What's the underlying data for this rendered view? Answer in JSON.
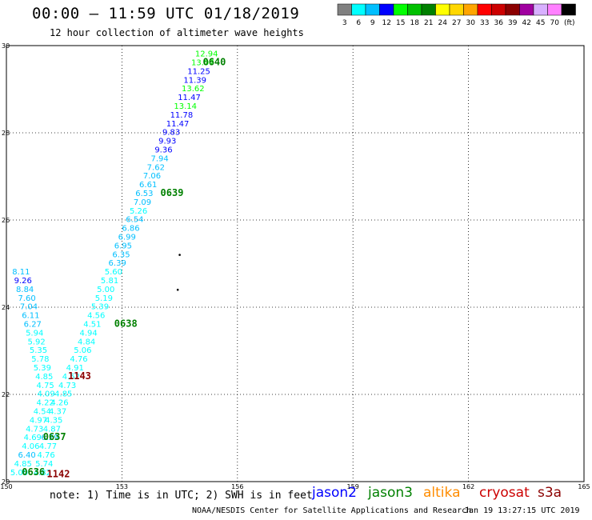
{
  "header": {
    "title": "00:00 – 11:59 UTC 01/18/2019",
    "subtitle": "12 hour collection of altimeter wave heights"
  },
  "colorbar": {
    "unit": "(ft)",
    "steps": [
      {
        "label": "3",
        "color": "#808080"
      },
      {
        "label": "6",
        "color": "#00ffff"
      },
      {
        "label": "9",
        "color": "#00bfff"
      },
      {
        "label": "12",
        "color": "#0000ff"
      },
      {
        "label": "15",
        "color": "#00ff00"
      },
      {
        "label": "18",
        "color": "#00c000"
      },
      {
        "label": "21",
        "color": "#008000"
      },
      {
        "label": "24",
        "color": "#ffff00"
      },
      {
        "label": "27",
        "color": "#ffd700"
      },
      {
        "label": "30",
        "color": "#ffa500"
      },
      {
        "label": "33",
        "color": "#ff0000"
      },
      {
        "label": "36",
        "color": "#cc0000"
      },
      {
        "label": "39",
        "color": "#8b0000"
      },
      {
        "label": "42",
        "color": "#a000a0"
      },
      {
        "label": "45",
        "color": "#d8b0ff"
      },
      {
        "label": "70",
        "color": "#ff80ff"
      },
      {
        "label": "",
        "color": "#000000"
      }
    ]
  },
  "footer": {
    "note": "note:  1) Time is in UTC;  2) SWH is in feet",
    "satellites": {
      "jason2": "jason2",
      "jason3": "jason3",
      "altika": "altika",
      "cryosat": "cryosat",
      "s3a": "s3a"
    },
    "credit": "NOAA/NESDIS Center for Satellite Applications and Research",
    "generated": "Jan 19 13:27:15 UTC 2019"
  },
  "chart_data": {
    "type": "scatter",
    "title": "12 hour collection of altimeter wave heights",
    "xlim": [
      150,
      165
    ],
    "ylim": [
      20,
      30
    ],
    "x_ticks": [
      "150",
      "153",
      "156",
      "159",
      "162",
      "165"
    ],
    "y_ticks": [
      "20",
      "22",
      "24",
      "26",
      "28",
      "30"
    ],
    "grid": true,
    "colors": {
      "c6": "#00ffff",
      "c9": "#00bfff",
      "c12": "#0000ff",
      "c15": "#00ff00",
      "c18": "#00c000",
      "c21": "#008000",
      "c39": "#8b0000"
    },
    "track_a_values": [
      {
        "v": "12.94",
        "x": 154.9,
        "y": 29.75,
        "c": "c15"
      },
      {
        "v": "13.07",
        "x": 154.8,
        "y": 29.55,
        "c": "c15"
      },
      {
        "v": "11.25",
        "x": 154.7,
        "y": 29.35,
        "c": "c12"
      },
      {
        "v": "11.39",
        "x": 154.6,
        "y": 29.15,
        "c": "c12"
      },
      {
        "v": "13.62",
        "x": 154.55,
        "y": 28.95,
        "c": "c15"
      },
      {
        "v": "11.47",
        "x": 154.45,
        "y": 28.75,
        "c": "c12"
      },
      {
        "v": "13.14",
        "x": 154.35,
        "y": 28.55,
        "c": "c15"
      },
      {
        "v": "11.78",
        "x": 154.25,
        "y": 28.35,
        "c": "c12"
      },
      {
        "v": "11.47",
        "x": 154.15,
        "y": 28.15,
        "c": "c12"
      },
      {
        "v": "9.83",
        "x": 154.05,
        "y": 27.95,
        "c": "c12"
      },
      {
        "v": "9.93",
        "x": 153.95,
        "y": 27.75,
        "c": "c12"
      },
      {
        "v": "9.36",
        "x": 153.85,
        "y": 27.55,
        "c": "c12"
      },
      {
        "v": "7.94",
        "x": 153.75,
        "y": 27.35,
        "c": "c9"
      },
      {
        "v": "7.62",
        "x": 153.65,
        "y": 27.15,
        "c": "c9"
      },
      {
        "v": "7.06",
        "x": 153.55,
        "y": 26.95,
        "c": "c9"
      },
      {
        "v": "6.61",
        "x": 153.45,
        "y": 26.75,
        "c": "c9"
      },
      {
        "v": "6.53",
        "x": 153.35,
        "y": 26.55,
        "c": "c9"
      },
      {
        "v": "7.09",
        "x": 153.3,
        "y": 26.35,
        "c": "c9"
      },
      {
        "v": "5.26",
        "x": 153.2,
        "y": 26.15,
        "c": "c6"
      },
      {
        "v": "6.54",
        "x": 153.1,
        "y": 25.95,
        "c": "c9"
      },
      {
        "v": "6.86",
        "x": 153.0,
        "y": 25.75,
        "c": "c9"
      },
      {
        "v": "6.99",
        "x": 152.9,
        "y": 25.55,
        "c": "c9"
      },
      {
        "v": "6.95",
        "x": 152.8,
        "y": 25.35,
        "c": "c9"
      },
      {
        "v": "6.35",
        "x": 152.75,
        "y": 25.15,
        "c": "c9"
      },
      {
        "v": "6.39",
        "x": 152.65,
        "y": 24.95,
        "c": "c9"
      },
      {
        "v": "5.60",
        "x": 152.55,
        "y": 24.75,
        "c": "c6"
      },
      {
        "v": "5.81",
        "x": 152.45,
        "y": 24.55,
        "c": "c6"
      },
      {
        "v": "5.00",
        "x": 152.35,
        "y": 24.35,
        "c": "c6"
      },
      {
        "v": "5.19",
        "x": 152.3,
        "y": 24.15,
        "c": "c6"
      },
      {
        "v": "5.39",
        "x": 152.2,
        "y": 23.95,
        "c": "c6"
      },
      {
        "v": "4.56",
        "x": 152.1,
        "y": 23.75,
        "c": "c6"
      },
      {
        "v": "4.51",
        "x": 152.0,
        "y": 23.55,
        "c": "c6"
      },
      {
        "v": "4.94",
        "x": 151.9,
        "y": 23.35,
        "c": "c6"
      },
      {
        "v": "4.84",
        "x": 151.85,
        "y": 23.15,
        "c": "c6"
      },
      {
        "v": "5.06",
        "x": 151.75,
        "y": 22.95,
        "c": "c6"
      },
      {
        "v": "4.76",
        "x": 151.65,
        "y": 22.75,
        "c": "c6"
      },
      {
        "v": "4.91",
        "x": 151.55,
        "y": 22.55,
        "c": "c6"
      },
      {
        "v": "4.52",
        "x": 151.45,
        "y": 22.35,
        "c": "c6"
      },
      {
        "v": "4.73",
        "x": 151.35,
        "y": 22.15,
        "c": "c6"
      },
      {
        "v": "4.85",
        "x": 151.25,
        "y": 21.95,
        "c": "c6"
      },
      {
        "v": "4.26",
        "x": 151.15,
        "y": 21.75,
        "c": "c6"
      },
      {
        "v": "4.37",
        "x": 151.1,
        "y": 21.55,
        "c": "c6"
      },
      {
        "v": "4.35",
        "x": 151.0,
        "y": 21.35,
        "c": "c6"
      },
      {
        "v": "4.87",
        "x": 150.95,
        "y": 21.15,
        "c": "c6"
      },
      {
        "v": "6.29",
        "x": 150.9,
        "y": 20.95,
        "c": "c9"
      },
      {
        "v": "4.77",
        "x": 150.85,
        "y": 20.75,
        "c": "c6"
      },
      {
        "v": "4.76",
        "x": 150.8,
        "y": 20.55,
        "c": "c6"
      },
      {
        "v": "5.74",
        "x": 150.75,
        "y": 20.35,
        "c": "c6"
      },
      {
        "v": "4.82",
        "x": 150.7,
        "y": 20.15,
        "c": "c6"
      }
    ],
    "track_b_values": [
      {
        "v": "8.11",
        "x": 150.15,
        "y": 24.75,
        "c": "c9"
      },
      {
        "v": "9.26",
        "x": 150.2,
        "y": 24.55,
        "c": "c12"
      },
      {
        "v": "8.84",
        "x": 150.25,
        "y": 24.35,
        "c": "c9"
      },
      {
        "v": "7.60",
        "x": 150.3,
        "y": 24.15,
        "c": "c9"
      },
      {
        "v": "7.04",
        "x": 150.35,
        "y": 23.95,
        "c": "c9"
      },
      {
        "v": "6.11",
        "x": 150.4,
        "y": 23.75,
        "c": "c9"
      },
      {
        "v": "6.27",
        "x": 150.45,
        "y": 23.55,
        "c": "c9"
      },
      {
        "v": "5.94",
        "x": 150.5,
        "y": 23.35,
        "c": "c6"
      },
      {
        "v": "5.92",
        "x": 150.55,
        "y": 23.15,
        "c": "c6"
      },
      {
        "v": "5.35",
        "x": 150.6,
        "y": 22.95,
        "c": "c6"
      },
      {
        "v": "5.78",
        "x": 150.65,
        "y": 22.75,
        "c": "c6"
      },
      {
        "v": "5.39",
        "x": 150.7,
        "y": 22.55,
        "c": "c6"
      },
      {
        "v": "4.85",
        "x": 150.75,
        "y": 22.35,
        "c": "c6"
      },
      {
        "v": "4.75",
        "x": 150.78,
        "y": 22.15,
        "c": "c6"
      },
      {
        "v": "4.09",
        "x": 150.8,
        "y": 21.95,
        "c": "c6"
      },
      {
        "v": "4.22",
        "x": 150.78,
        "y": 21.75,
        "c": "c6"
      },
      {
        "v": "4.54",
        "x": 150.7,
        "y": 21.55,
        "c": "c6"
      },
      {
        "v": "4.97",
        "x": 150.6,
        "y": 21.35,
        "c": "c6"
      },
      {
        "v": "4.73",
        "x": 150.5,
        "y": 21.15,
        "c": "c6"
      },
      {
        "v": "4.69",
        "x": 150.45,
        "y": 20.95,
        "c": "c6"
      },
      {
        "v": "4.06",
        "x": 150.4,
        "y": 20.75,
        "c": "c6"
      },
      {
        "v": "6.40",
        "x": 150.3,
        "y": 20.55,
        "c": "c9"
      },
      {
        "v": "4.85",
        "x": 150.2,
        "y": 20.35,
        "c": "c6"
      },
      {
        "v": "5.00",
        "x": 150.1,
        "y": 20.15,
        "c": "c6"
      }
    ],
    "time_labels": [
      {
        "t": "0640",
        "x": 155.1,
        "y": 29.55,
        "c": "c21"
      },
      {
        "t": "0639",
        "x": 154.0,
        "y": 26.55,
        "c": "c21"
      },
      {
        "t": "0638",
        "x": 152.8,
        "y": 23.55,
        "c": "c21"
      },
      {
        "t": "1143",
        "x": 151.6,
        "y": 22.35,
        "c": "c39"
      },
      {
        "t": "0637",
        "x": 150.95,
        "y": 20.95,
        "c": "c21"
      },
      {
        "t": "0636",
        "x": 150.4,
        "y": 20.15,
        "c": "c21"
      },
      {
        "t": "1142",
        "x": 151.05,
        "y": 20.1,
        "c": "c39"
      }
    ],
    "dots": [
      {
        "x": 154.5,
        "y": 25.2
      },
      {
        "x": 154.45,
        "y": 24.4
      }
    ]
  }
}
